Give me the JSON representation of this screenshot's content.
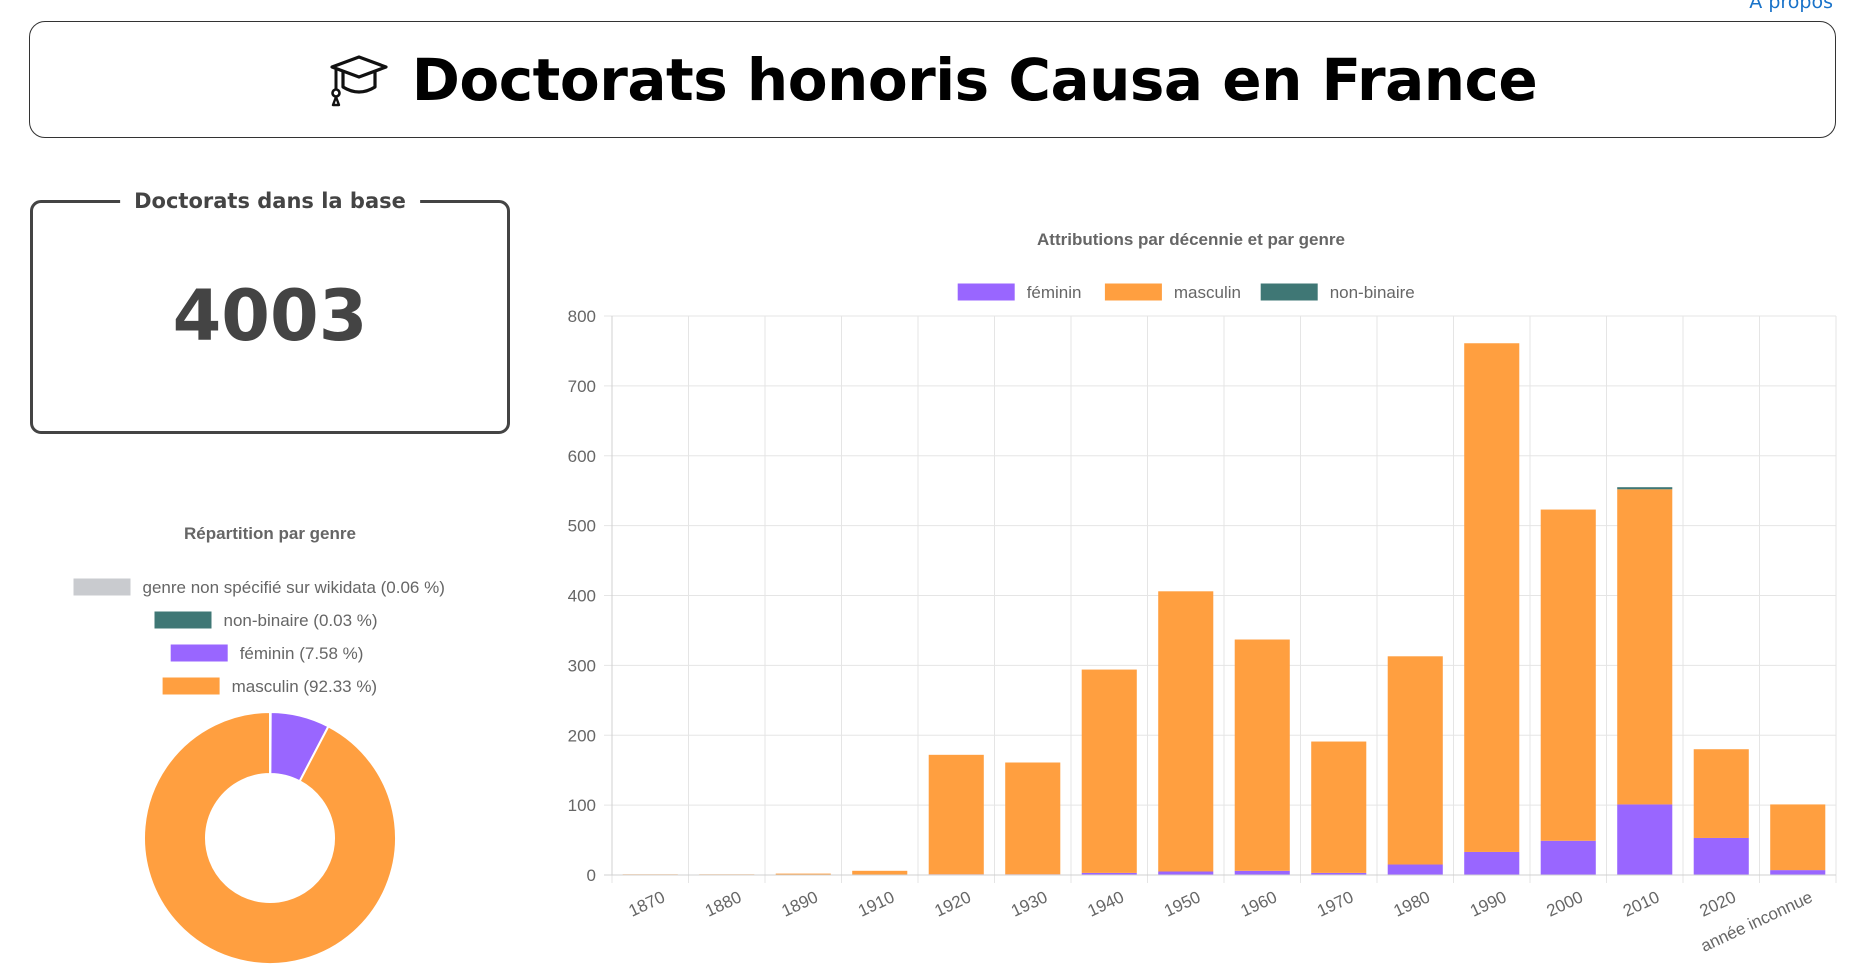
{
  "header": {
    "title": "Doctorats honoris Causa en France",
    "about_link": "À propos",
    "icon": "graduation-cap-icon"
  },
  "stat_card": {
    "label": "Doctorats dans la base",
    "value": "4003"
  },
  "colors": {
    "feminin": "#9966ff",
    "masculin": "#ff9f40",
    "non_binaire": "#3f7775",
    "non_specifie": "#c9cbcf",
    "grid": "#e5e5e5",
    "text": "#666666"
  },
  "chart_data": [
    {
      "type": "pie",
      "title": "Répartition par genre",
      "labels": [
        "genre non spécifié sur wikidata (0.06 %)",
        "non-binaire (0.03 %)",
        "féminin (7.58 %)",
        "masculin (92.33 %)"
      ],
      "values": [
        0.06,
        0.03,
        7.58,
        92.33
      ],
      "colors": [
        "#c9cbcf",
        "#3f7775",
        "#9966ff",
        "#ff9f40"
      ],
      "legend_position": "top"
    },
    {
      "type": "bar",
      "stacked": true,
      "title": "Attributions par décennie et par genre",
      "categories": [
        "1870",
        "1880",
        "1890",
        "1910",
        "1920",
        "1930",
        "1940",
        "1950",
        "1960",
        "1970",
        "1980",
        "1990",
        "2000",
        "2010",
        "2020",
        "année inconnue"
      ],
      "series": [
        {
          "name": "féminin",
          "color": "#9966ff",
          "values": [
            0,
            0,
            0,
            0,
            1,
            1,
            3,
            5,
            6,
            3,
            15,
            33,
            49,
            101,
            53,
            7
          ]
        },
        {
          "name": "masculin",
          "color": "#ff9f40",
          "values": [
            1,
            1,
            2,
            6,
            171,
            160,
            291,
            401,
            331,
            188,
            298,
            728,
            474,
            451,
            127,
            94
          ]
        },
        {
          "name": "non-binaire",
          "color": "#3f7775",
          "values": [
            0,
            0,
            0,
            0,
            0,
            0,
            0,
            0,
            0,
            0,
            0,
            0,
            0,
            3,
            0,
            0
          ]
        }
      ],
      "xlabel": "",
      "ylabel": "",
      "ylim": [
        0,
        800
      ],
      "yticks": [
        0,
        100,
        200,
        300,
        400,
        500,
        600,
        700,
        800
      ],
      "grid": true,
      "legend_position": "top"
    }
  ]
}
